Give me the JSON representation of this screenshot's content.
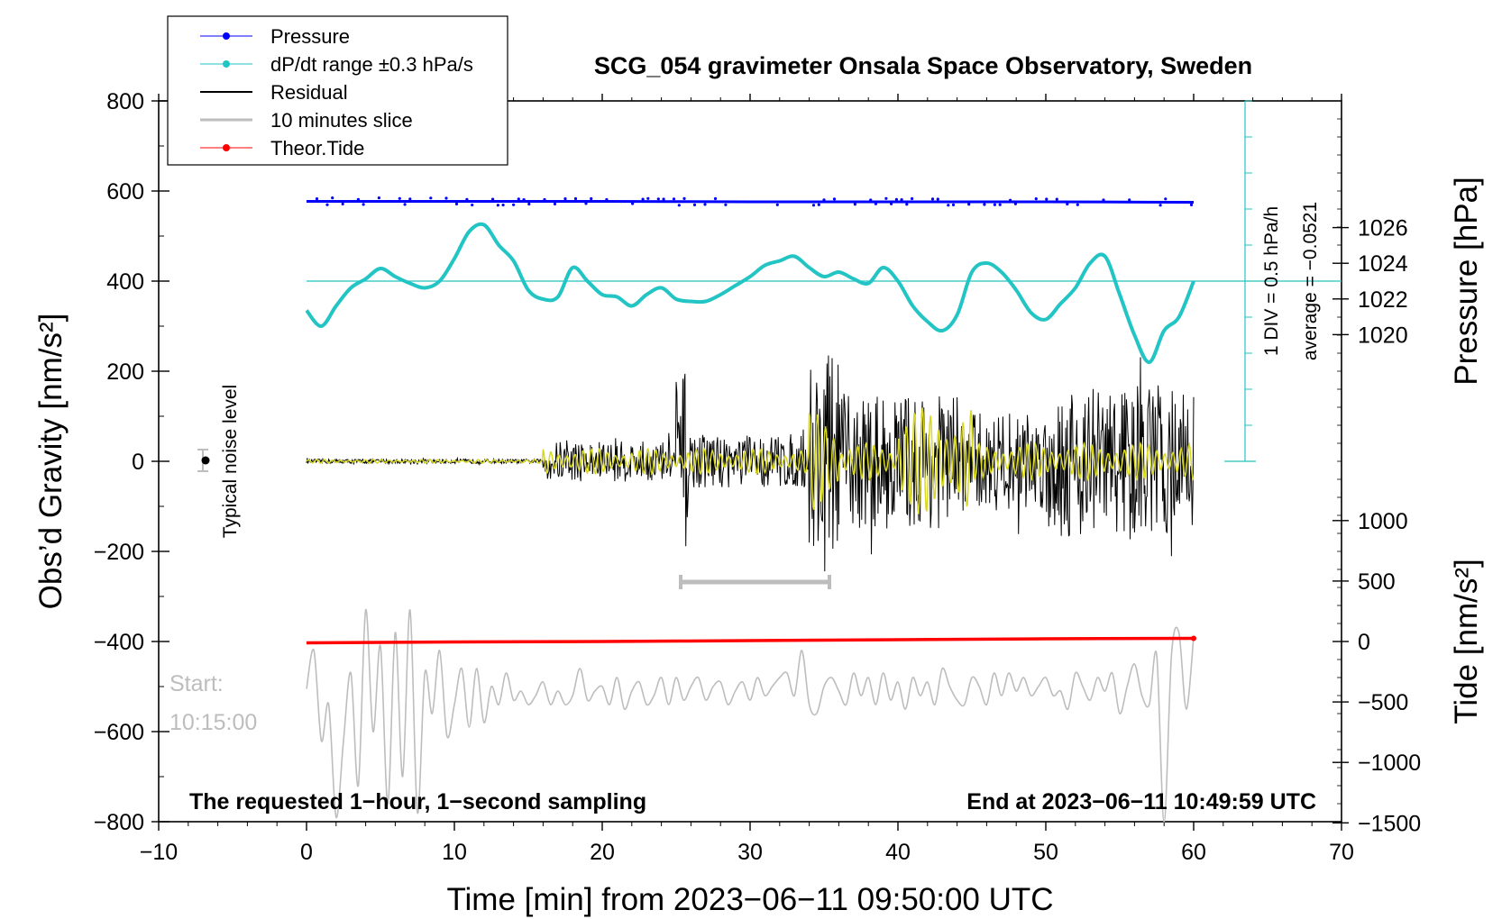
{
  "chart_data": {
    "type": "line",
    "title": "SCG_054 gravimeter Onsala Space Observatory, Sweden",
    "xlabel": "Time [min] from 2023−06−11 09:50:00 UTC",
    "ylabel": "Obs’d Gravity [nm/s²]",
    "ylabel_right_top": "Pressure [hPa]",
    "ylabel_right_bottom": "Tide [nm/s²]",
    "xlim": [
      -10,
      70
    ],
    "ylim": [
      -800,
      800
    ],
    "x_ticks": [
      "−10",
      "0",
      "10",
      "20",
      "30",
      "40",
      "50",
      "60",
      "70"
    ],
    "y_ticks": [
      "800",
      "600",
      "400",
      "200",
      "0",
      "−200",
      "−400",
      "−600",
      "−800"
    ],
    "pressure_axis": {
      "ticks": [
        "1026",
        "1024",
        "1022",
        "1020"
      ],
      "tick_values": [
        1026,
        1024,
        1022,
        1020
      ],
      "gravity_per_hPa": 39.6,
      "reference_hPa": 1023,
      "reference_gravity": 400
    },
    "tide_axis": {
      "ticks": [
        "1000",
        "500",
        "0",
        "−500",
        "−1000",
        "−1500"
      ],
      "tick_values": [
        1000,
        500,
        0,
        -500,
        -1000,
        -1500
      ],
      "gravity_per_unit": 0.2684,
      "reference_gravity": -400
    },
    "legend": {
      "position": "top-left",
      "entries": [
        "Pressure",
        "dP/dt range ±0.3 hPa/s",
        "Residual",
        "10 minutes slice",
        "Theor.Tide"
      ]
    },
    "scale_bar_label": "1 DIV = 0.5 hPa/h",
    "average_label": "average = −0.0521",
    "noise_label": "Typical noise level",
    "start_label": "Start:",
    "start_time": "10:15:00",
    "footer_left": "The requested 1−hour, 1−second sampling",
    "footer_right": "End at 2023−06−11 10:49:59 UTC",
    "colors": {
      "pressure": "#0000ff",
      "dpdt": "#22c4c4",
      "residual": "#000000",
      "slice": "#bdbdbd",
      "tide": "#ff0000",
      "filtered": "#d8d820"
    },
    "series": [
      {
        "name": "Pressure",
        "x": [
          0,
          10,
          20,
          30,
          40,
          50,
          60
        ],
        "values": [
          577,
          577,
          577,
          576,
          576,
          576,
          575
        ]
      },
      {
        "name": "dP/dt",
        "x": [
          0,
          1,
          2,
          3,
          4,
          5,
          6,
          7,
          8,
          9,
          10,
          11,
          12,
          13,
          14,
          15,
          16,
          17,
          18,
          19,
          20,
          21,
          22,
          23,
          24,
          25,
          26,
          27,
          28,
          29,
          30,
          31,
          32,
          33,
          34,
          35,
          36,
          37,
          38,
          39,
          40,
          41,
          42,
          43,
          44,
          45,
          46,
          47,
          48,
          49,
          50,
          51,
          52,
          53,
          54,
          55,
          56,
          57,
          58,
          59,
          60
        ],
        "values": [
          335,
          300,
          345,
          385,
          405,
          428,
          410,
          395,
          385,
          400,
          450,
          510,
          525,
          480,
          445,
          380,
          360,
          365,
          430,
          400,
          370,
          365,
          345,
          370,
          385,
          360,
          355,
          355,
          370,
          390,
          410,
          435,
          445,
          455,
          430,
          410,
          420,
          405,
          395,
          430,
          400,
          345,
          310,
          290,
          325,
          420,
          440,
          420,
          380,
          330,
          315,
          350,
          385,
          440,
          455,
          370,
          280,
          220,
          290,
          320,
          400
        ]
      },
      {
        "name": "Residual",
        "segments": [
          {
            "x0": 0,
            "x1": 16,
            "amp": 5
          },
          {
            "x0": 16,
            "x1": 25,
            "amp": 45
          },
          {
            "x0": 25,
            "x1": 26,
            "amp": 200
          },
          {
            "x0": 26,
            "x1": 34,
            "amp": 60
          },
          {
            "x0": 34,
            "x1": 36,
            "amp": 250
          },
          {
            "x0": 36,
            "x1": 44,
            "amp": 150
          },
          {
            "x0": 44,
            "x1": 50,
            "amp": 110
          },
          {
            "x0": 50,
            "x1": 60,
            "amp": 170
          }
        ]
      },
      {
        "name": "Filtered",
        "segments": [
          {
            "x0": 0,
            "x1": 16,
            "amp": 4
          },
          {
            "x0": 16,
            "x1": 34,
            "amp": 28
          },
          {
            "x0": 34,
            "x1": 36,
            "amp": 110
          },
          {
            "x0": 36,
            "x1": 40,
            "amp": 40
          },
          {
            "x0": 40,
            "x1": 45,
            "amp": 120
          },
          {
            "x0": 45,
            "x1": 60,
            "amp": 40
          }
        ]
      },
      {
        "name": "10 minutes slice",
        "x": [
          0,
          0.5,
          1,
          1.5,
          2,
          2.5,
          3,
          3.5,
          4,
          4.5,
          5,
          5.5,
          6,
          6.5,
          7,
          7.5,
          8,
          8.5,
          9,
          9.5,
          10,
          10.5,
          11,
          11.5,
          12,
          12.5,
          13,
          13.5,
          14,
          14.5,
          15,
          15.5,
          16,
          16.5,
          17,
          17.5,
          18,
          18.5,
          19,
          19.5,
          20,
          20.5,
          21,
          21.5,
          22,
          22.5,
          23,
          23.5,
          24,
          24.5,
          25,
          25.5,
          26,
          26.5,
          27,
          27.5,
          28,
          28.5,
          29,
          29.5,
          30,
          30.5,
          31,
          31.5,
          32,
          32.5,
          33,
          33.5,
          34,
          34.5,
          35,
          35.5,
          36,
          36.5,
          37,
          37.5,
          38,
          38.5,
          39,
          39.5,
          40,
          40.5,
          41,
          41.5,
          42,
          42.5,
          43,
          43.5,
          44,
          44.5,
          45,
          45.5,
          46,
          46.5,
          47,
          47.5,
          48,
          48.5,
          49,
          49.5,
          50,
          50.5,
          51,
          51.5,
          52,
          52.5,
          53,
          53.5,
          54,
          54.5,
          55,
          55.5,
          56,
          56.5,
          57,
          57.5,
          58,
          58.5,
          59,
          59.5,
          60
        ],
        "values": [
          -505,
          -420,
          -620,
          -540,
          -790,
          -620,
          -470,
          -720,
          -330,
          -600,
          -410,
          -760,
          -380,
          -700,
          -330,
          -780,
          -470,
          -560,
          -420,
          -610,
          -540,
          -460,
          -590,
          -460,
          -580,
          -500,
          -540,
          -470,
          -530,
          -510,
          -540,
          -520,
          -490,
          -540,
          -510,
          -540,
          -520,
          -460,
          -530,
          -510,
          -500,
          -540,
          -480,
          -550,
          -510,
          -490,
          -540,
          -520,
          -480,
          -540,
          -480,
          -530,
          -500,
          -480,
          -530,
          -500,
          -490,
          -540,
          -510,
          -490,
          -530,
          -480,
          -520,
          -500,
          -480,
          -470,
          -520,
          -420,
          -540,
          -560,
          -500,
          -480,
          -510,
          -540,
          -470,
          -520,
          -480,
          -540,
          -470,
          -530,
          -490,
          -550,
          -480,
          -520,
          -490,
          -540,
          -460,
          -500,
          -530,
          -540,
          -480,
          -500,
          -540,
          -470,
          -520,
          -470,
          -510,
          -480,
          -520,
          -500,
          -480,
          -520,
          -510,
          -550,
          -470,
          -500,
          -530,
          -480,
          -510,
          -470,
          -560,
          -500,
          -450,
          -520,
          -540,
          -430,
          -800,
          -430,
          -380,
          -550,
          -390
        ]
      },
      {
        "name": "Theor.Tide",
        "x": [
          0,
          10,
          20,
          30,
          40,
          50,
          60
        ],
        "values": [
          -403,
          -401,
          -400,
          -398,
          -396,
          -394,
          -393
        ]
      }
    ]
  }
}
